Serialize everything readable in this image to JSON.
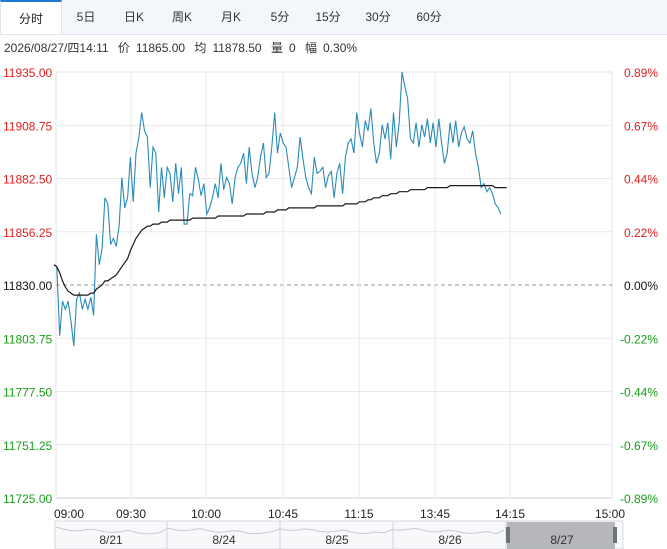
{
  "tabs": [
    "分时",
    "5日",
    "日K",
    "周K",
    "月K",
    "5分",
    "15分",
    "30分",
    "60分"
  ],
  "active_tab": "分时",
  "info": {
    "datetime": "2026/08/27/四14:11",
    "price_label": "价",
    "price": "11865.00",
    "avg_label": "均",
    "avg": "11878.50",
    "vol_label": "量",
    "vol": "0",
    "range_label": "幅",
    "range": "0.30%"
  },
  "colors": {
    "up": "#e02020",
    "down": "#1a9e1a",
    "flat": "#111111",
    "price_line": "#2a8ab8",
    "avg_line": "#1a1a1a",
    "grid": "#e9e9e9"
  },
  "navigator": {
    "labels": [
      "8/21",
      "8/24",
      "8/25",
      "8/26",
      "8/27"
    ],
    "selected": "8/27"
  },
  "chart_data": {
    "type": "line",
    "base_price": 11830.0,
    "ylim": [
      11725.0,
      11935.0
    ],
    "y_ticks_left": [
      "11935.00",
      "11908.75",
      "11882.50",
      "11856.25",
      "11830.00",
      "11803.75",
      "11777.50",
      "11751.25",
      "11725.00"
    ],
    "y_ticks_right": [
      "0.89%",
      "0.67%",
      "0.44%",
      "0.22%",
      "0.00%",
      "-0.22%",
      "-0.44%",
      "-0.67%",
      "-0.89%"
    ],
    "x_ticks": [
      "09:00",
      "09:30",
      "10:00",
      "10:45",
      "11:15",
      "13:45",
      "14:15",
      "15:00"
    ],
    "series": [
      {
        "key": "price",
        "values": [
          11840,
          11839,
          11805,
          11822,
          11818,
          11822,
          11812,
          11800,
          11823,
          11826,
          11818,
          11823,
          11818,
          11824,
          11815,
          11855,
          11840,
          11848,
          11873,
          11870,
          11850,
          11853,
          11849,
          11859,
          11883,
          11868,
          11873,
          11893,
          11871,
          11895,
          11903,
          11915,
          11906,
          11903,
          11878,
          11898,
          11895,
          11866,
          11888,
          11873,
          11888,
          11885,
          11871,
          11890,
          11875,
          11888,
          11860,
          11860,
          11875,
          11874,
          11888,
          11882,
          11874,
          11880,
          11865,
          11868,
          11873,
          11880,
          11873,
          11890,
          11877,
          11883,
          11880,
          11870,
          11883,
          11888,
          11890,
          11895,
          11880,
          11898,
          11885,
          11878,
          11883,
          11893,
          11900,
          11883,
          11885,
          11898,
          11915,
          11895,
          11905,
          11900,
          11898,
          11888,
          11878,
          11883,
          11888,
          11903,
          11892,
          11883,
          11878,
          11875,
          11893,
          11885,
          11886,
          11888,
          11878,
          11884,
          11886,
          11873,
          11885,
          11890,
          11875,
          11893,
          11900,
          11902,
          11895,
          11915,
          11905,
          11898,
          11911,
          11906,
          11917,
          11900,
          11890,
          11895,
          11909,
          11902,
          11910,
          11892,
          11915,
          11898,
          11910,
          11935,
          11928,
          11922,
          11902,
          11900,
          11910,
          11898,
          11909,
          11903,
          11912,
          11900,
          11910,
          11898,
          11912,
          11900,
          11890,
          11895,
          11910,
          11900,
          11911,
          11898,
          11905,
          11908,
          11902,
          11900,
          11906,
          11895,
          11888,
          11878,
          11880,
          11876,
          11878,
          11875,
          11870,
          11868,
          11865
        ]
      },
      {
        "key": "average",
        "values": [
          11840,
          11839,
          11836,
          11832,
          11829,
          11827,
          11826,
          11825,
          11825,
          11825,
          11825,
          11825,
          11825,
          11826,
          11826,
          11828,
          11829,
          11830,
          11832,
          11832,
          11833,
          11834,
          11835,
          11837,
          11839,
          11841,
          11843,
          11847,
          11850,
          11853,
          11855,
          11857,
          11858,
          11859,
          11859,
          11860,
          11860,
          11860,
          11861,
          11861,
          11861,
          11862,
          11862,
          11862,
          11862,
          11862,
          11862,
          11862,
          11862,
          11863,
          11863,
          11863,
          11863,
          11863,
          11863,
          11863,
          11863,
          11863,
          11864,
          11864,
          11864,
          11864,
          11864,
          11864,
          11864,
          11864,
          11864,
          11864,
          11865,
          11865,
          11865,
          11865,
          11865,
          11865,
          11865,
          11866,
          11866,
          11866,
          11866,
          11867,
          11867,
          11867,
          11867,
          11868,
          11868,
          11868,
          11868,
          11868,
          11868,
          11868,
          11868,
          11868,
          11868,
          11869,
          11869,
          11869,
          11869,
          11869,
          11869,
          11869,
          11869,
          11869,
          11869,
          11870,
          11870,
          11870,
          11870,
          11870,
          11871,
          11871,
          11871,
          11872,
          11872,
          11873,
          11873,
          11873,
          11874,
          11874,
          11874,
          11875,
          11875,
          11875,
          11876,
          11876,
          11876,
          11876,
          11877,
          11877,
          11877,
          11877,
          11877,
          11877,
          11878,
          11878,
          11878,
          11878,
          11878,
          11878,
          11878,
          11878,
          11879,
          11879,
          11879,
          11879,
          11879,
          11879,
          11879,
          11879,
          11879,
          11879,
          11879,
          11879,
          11879,
          11879,
          11879,
          11879,
          11878,
          11878,
          11878,
          11878,
          11878
        ]
      }
    ]
  }
}
